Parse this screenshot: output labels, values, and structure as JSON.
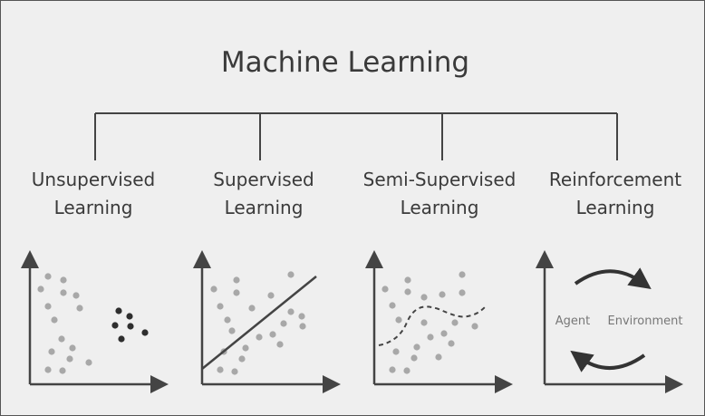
{
  "title": "Machine Learning",
  "branches": [
    {
      "line1": "Unsupervised",
      "line2": "Learning"
    },
    {
      "line1": "Supervised",
      "line2": "Learning"
    },
    {
      "line1": "Semi-Supervised",
      "line2": "Learning"
    },
    {
      "line1": "Reinforcement",
      "line2": "Learning"
    }
  ],
  "reinforcement": {
    "agent_label": "Agent",
    "environment_label": "Environment"
  },
  "colors": {
    "background": "#efefef",
    "text": "#3a3a3a",
    "line": "#444444",
    "light_dot": "#a8a8a8",
    "dark_dot": "#2e2e2e"
  }
}
